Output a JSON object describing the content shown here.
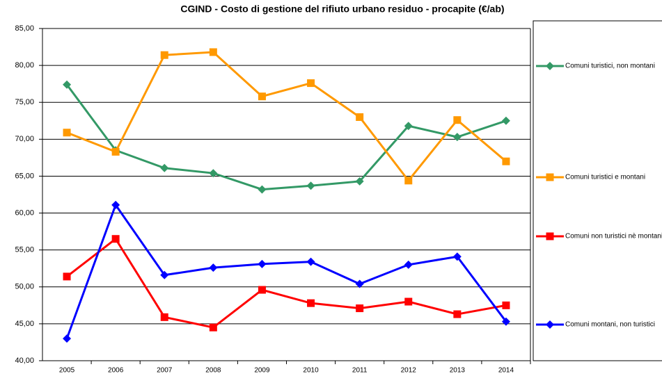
{
  "chart_data": {
    "type": "line",
    "title": "CGIND - Costo di gestione del rifiuto urbano residuo - procapite (€/ab)",
    "categories": [
      "2005",
      "2006",
      "2007",
      "2008",
      "2009",
      "2010",
      "2011",
      "2012",
      "2013",
      "2014"
    ],
    "series": [
      {
        "name": "Comuni turistici, non montani",
        "color": "#339966",
        "marker": "diamond",
        "values": [
          77.4,
          68.5,
          66.1,
          65.4,
          63.2,
          63.7,
          64.3,
          71.8,
          70.3,
          72.5
        ]
      },
      {
        "name": "Comuni turistici e montani",
        "color": "#ff9900",
        "marker": "square",
        "values": [
          70.9,
          68.3,
          81.4,
          81.8,
          75.8,
          77.6,
          73.0,
          64.4,
          72.6,
          67.0
        ]
      },
      {
        "name": "Comuni non turistici nè montani",
        "color": "#ff0000",
        "marker": "square",
        "values": [
          51.4,
          56.5,
          45.9,
          44.5,
          49.6,
          47.8,
          47.1,
          48.0,
          46.3,
          47.5
        ]
      },
      {
        "name": "Comuni montani, non turistici",
        "color": "#0000ff",
        "marker": "diamond",
        "values": [
          43.0,
          61.1,
          51.6,
          52.6,
          53.1,
          53.4,
          50.4,
          53.0,
          54.1,
          45.3
        ]
      }
    ],
    "ylim": [
      40,
      85
    ],
    "yticks": [
      {
        "value": 40,
        "label": "40,00"
      },
      {
        "value": 45,
        "label": "45,00"
      },
      {
        "value": 50,
        "label": "50,00"
      },
      {
        "value": 55,
        "label": "55,00"
      },
      {
        "value": 60,
        "label": "60,00"
      },
      {
        "value": 65,
        "label": "65,00"
      },
      {
        "value": 70,
        "label": "70,00"
      },
      {
        "value": 75,
        "label": "75,00"
      },
      {
        "value": 80,
        "label": "80,00"
      },
      {
        "value": 85,
        "label": "85,00"
      }
    ],
    "grid": true,
    "legend": "right"
  }
}
